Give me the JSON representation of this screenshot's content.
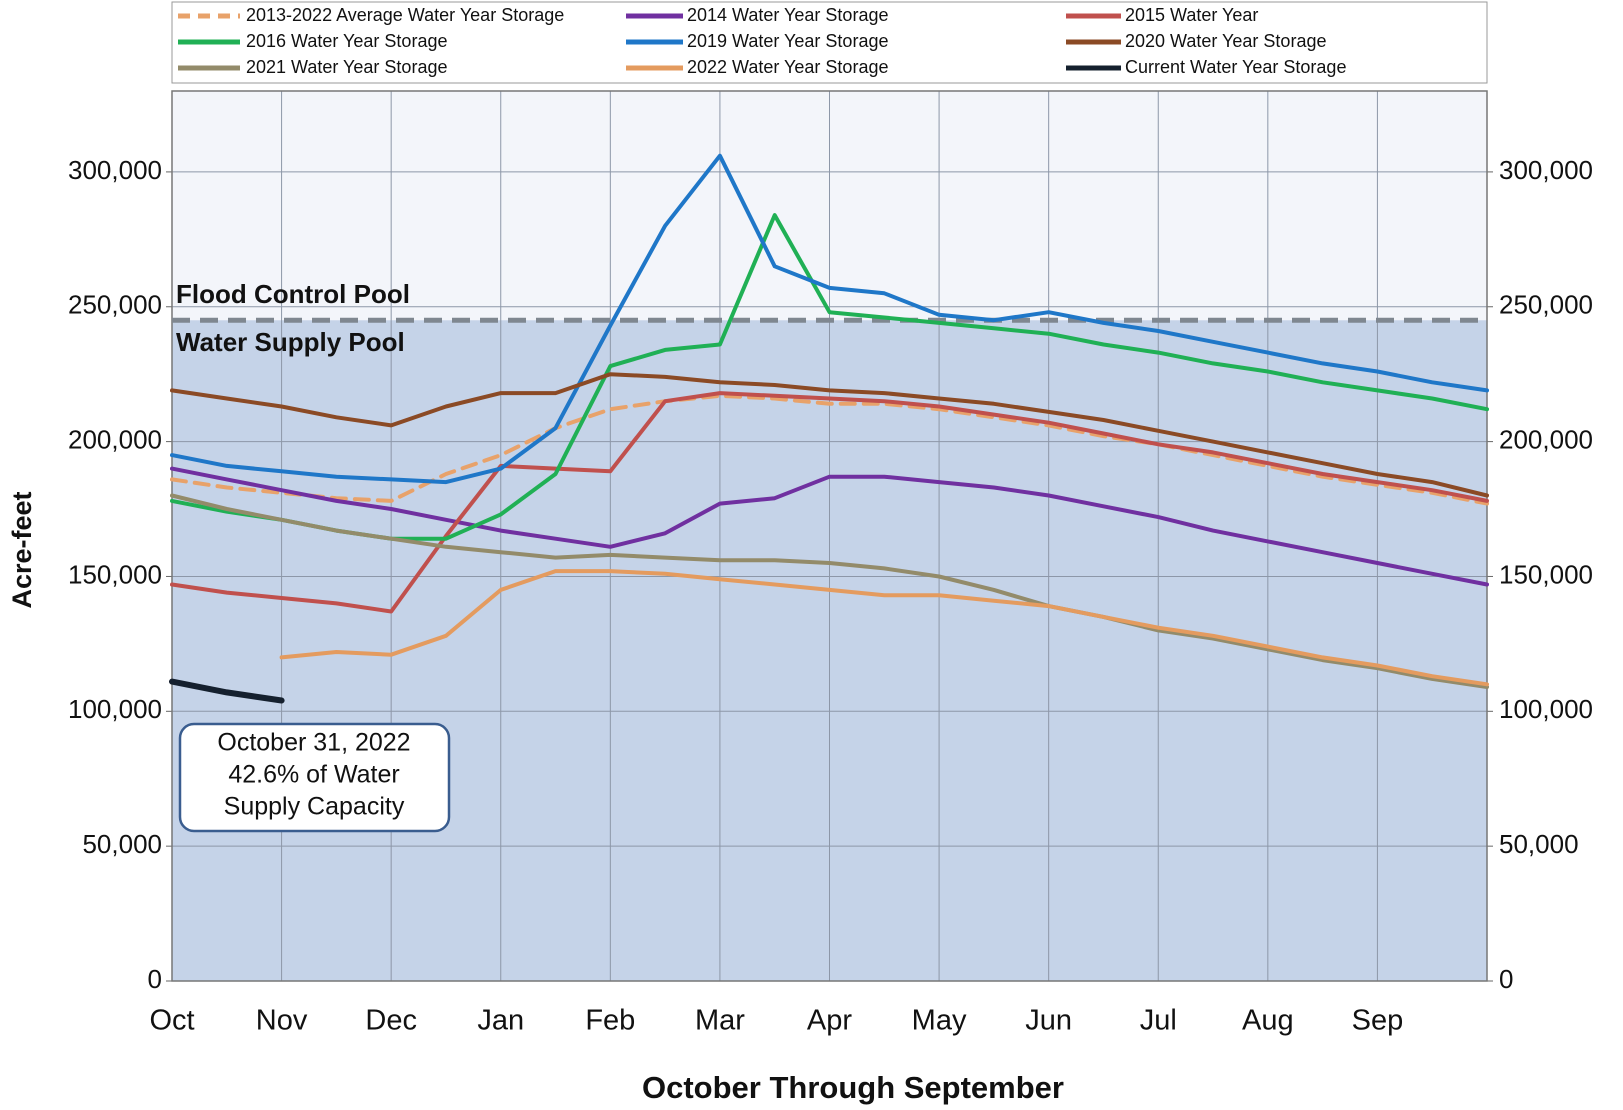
{
  "chart_data": {
    "type": "line",
    "title_x": "October Through September",
    "ylabel": "Acre-feet",
    "categories": [
      "Oct",
      null,
      "Nov",
      null,
      "Dec",
      null,
      "Jan",
      null,
      "Feb",
      null,
      "Mar",
      null,
      "Apr",
      null,
      "May",
      null,
      "Jun",
      null,
      "Jul",
      null,
      "Aug",
      null,
      "Sep",
      null,
      null
    ],
    "ylim": [
      0,
      330000
    ],
    "yticks": [
      0,
      {
        "value": 50000,
        "label": "50,000"
      },
      {
        "value": 100000,
        "label": "100,000"
      },
      {
        "value": 150000,
        "label": "150,000"
      },
      {
        "value": 200000,
        "label": "200,000"
      },
      {
        "value": 250000,
        "label": "250,000"
      },
      {
        "value": 300000,
        "label": "300,000"
      }
    ],
    "y2lim": [
      0,
      330000
    ],
    "y2ticks": [
      0,
      {
        "value": 50000,
        "label": "50,000"
      },
      {
        "value": 100000,
        "label": "100,000"
      },
      {
        "value": 150000,
        "label": "150,000"
      },
      {
        "value": 200000,
        "label": "200,000"
      },
      {
        "value": 250000,
        "label": "250,000"
      },
      {
        "value": 300000,
        "label": "300,000"
      }
    ],
    "grid": true,
    "legend": "top",
    "pool_level": 245000,
    "pool_labels": [
      "Flood Control Pool",
      "Water Supply Pool"
    ],
    "annotation": [
      "October 31, 2022",
      "42.6% of Water",
      "Supply Capacity"
    ],
    "series": [
      {
        "name": "2013-2022 Average Water Year Storage",
        "color": "#e8a26a",
        "style": "dashed",
        "values": [
          186000,
          183000,
          181000,
          179000,
          178000,
          188000,
          195000,
          205000,
          212000,
          215000,
          217000,
          216000,
          214000,
          214000,
          212000,
          209000,
          206000,
          202000,
          199000,
          195000,
          191000,
          187000,
          184000,
          181000,
          177000
        ]
      },
      {
        "name": "2014 Water Year Storage",
        "color": "#7030a0",
        "values": [
          190000,
          186000,
          182000,
          178000,
          175000,
          171000,
          167000,
          164000,
          161000,
          166000,
          177000,
          179000,
          187000,
          187000,
          185000,
          183000,
          180000,
          176000,
          172000,
          167000,
          163000,
          159000,
          155000,
          151000,
          147000
        ]
      },
      {
        "name": "2015 Water Year",
        "color": "#c0504d",
        "values": [
          147000,
          144000,
          142000,
          140000,
          137000,
          165000,
          191000,
          190000,
          189000,
          215000,
          218000,
          217000,
          216000,
          215000,
          213000,
          210000,
          207000,
          203000,
          199000,
          196000,
          192000,
          188000,
          185000,
          182000,
          178000
        ]
      },
      {
        "name": "2016 Water Year Storage",
        "color": "#20b055",
        "values": [
          178000,
          174000,
          171000,
          167000,
          164000,
          164000,
          173000,
          188000,
          228000,
          234000,
          236000,
          284000,
          248000,
          246000,
          244000,
          242000,
          240000,
          236000,
          233000,
          229000,
          226000,
          222000,
          219000,
          216000,
          212000
        ]
      },
      {
        "name": "2019 Water Year Storage",
        "color": "#1f77c8",
        "values": [
          195000,
          191000,
          189000,
          187000,
          186000,
          185000,
          190000,
          205000,
          243000,
          280000,
          306000,
          265000,
          257000,
          255000,
          247000,
          245000,
          248000,
          244000,
          241000,
          237000,
          233000,
          229000,
          226000,
          222000,
          219000
        ]
      },
      {
        "name": "2020 Water Year Storage",
        "color": "#8b4a25",
        "values": [
          219000,
          216000,
          213000,
          209000,
          206000,
          213000,
          218000,
          218000,
          225000,
          224000,
          222000,
          221000,
          219000,
          218000,
          216000,
          214000,
          211000,
          208000,
          204000,
          200000,
          196000,
          192000,
          188000,
          185000,
          180000
        ]
      },
      {
        "name": "2021 Water Year Storage",
        "color": "#938b6a",
        "values": [
          180000,
          175000,
          171000,
          167000,
          164000,
          161000,
          159000,
          157000,
          158000,
          157000,
          156000,
          156000,
          155000,
          153000,
          150000,
          145000,
          139000,
          135000,
          130000,
          127000,
          123000,
          119000,
          116000,
          112000,
          109000
        ]
      },
      {
        "name": "2022 Water Year Storage",
        "color": "#e49b5f",
        "values": [
          null,
          null,
          120000,
          122000,
          121000,
          128000,
          145000,
          152000,
          152000,
          151000,
          149000,
          147000,
          145000,
          143000,
          143000,
          141000,
          139000,
          135000,
          131000,
          128000,
          124000,
          120000,
          117000,
          113000,
          110000
        ]
      },
      {
        "name": "Current Water Year Storage",
        "color": "#15202e",
        "values": [
          111000,
          107000,
          104000,
          null,
          null,
          null,
          null,
          null,
          null,
          null,
          null,
          null,
          null,
          null,
          null,
          null,
          null,
          null,
          null,
          null,
          null,
          null,
          null,
          null,
          null
        ]
      }
    ]
  }
}
